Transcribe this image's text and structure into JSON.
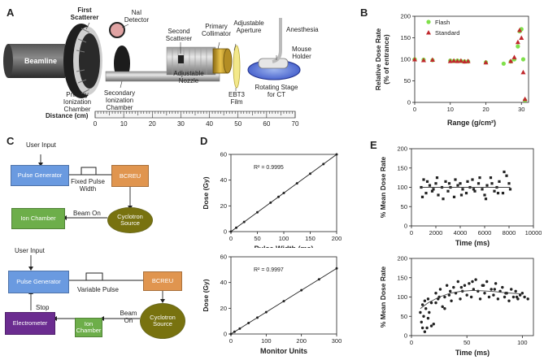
{
  "panels": {
    "a": "A",
    "b": "B",
    "c": "C",
    "d": "D",
    "e": "E"
  },
  "panel_a": {
    "labels": {
      "first_scatterer": "First Scatterer",
      "nai_detector": "NaI Detector",
      "beamline": "Beamline",
      "primary_ionization_chamber": "Primary Ionization Chamber",
      "secondary_ionization_chamber": "Secondary Ionization Chamber",
      "second_scatterer": "Second Scatterer",
      "primary_collimator": "Primary Collimator",
      "adjustable_aperture": "Adjustable Aperture",
      "adjustable_nozzle": "Adjustable Nozzle",
      "anesthesia": "Anesthesia",
      "mouse_holder": "Mouse Holder",
      "ebt3_film": "EBT3 Film",
      "rotating_stage": "Rotating Stage for CT"
    },
    "ruler": {
      "label": "Distance (cm)",
      "ticks": [
        0,
        10,
        20,
        30,
        40,
        50,
        60,
        70
      ]
    }
  },
  "panel_c": {
    "top": {
      "user_input": "User Input",
      "pulse_generator": "Pulse Generator",
      "pulse_label": "Fixed Pulse Width",
      "bcreu": "BCREU",
      "ion_chamber": "Ion Chamber",
      "beam_on": "Beam On",
      "cyclotron": "Cyclotron Source"
    },
    "bottom": {
      "user_input": "User Input",
      "pulse_generator": "Pulse Generator",
      "pulse_label": "Variable Pulse",
      "bcreu": "BCREU",
      "stop": "Stop",
      "beam_on": "Beam On",
      "electrometer": "Electrometer",
      "ion_chamber": "Ion Chamber",
      "cyclotron": "Cyclotron Source"
    },
    "colors": {
      "blue": "#5b8fd6",
      "orange": "#d98a45",
      "green": "#66a845",
      "olive": "#6e6a10",
      "purple": "#6a2c8e"
    }
  },
  "chart_data": [
    {
      "id": "B",
      "type": "scatter",
      "xlabel": "Range (g/cm²)",
      "ylabel": "Relative Dose Rate (% of entrance)",
      "xlim": [
        0,
        32
      ],
      "ylim": [
        0,
        200
      ],
      "xticks": [
        0,
        10,
        20,
        30
      ],
      "yticks": [
        0,
        50,
        100,
        150,
        200
      ],
      "legend_position": "top-left",
      "series": [
        {
          "name": "Flash",
          "marker": "circle",
          "color": "#7fe04a",
          "x": [
            0,
            2.5,
            5,
            10,
            11,
            12,
            13,
            14,
            15,
            20,
            25,
            27,
            28,
            29,
            29.5,
            30,
            30.5,
            31
          ],
          "y": [
            100,
            99,
            98,
            97,
            96,
            97,
            96,
            95,
            95,
            93,
            90,
            95,
            100,
            130,
            165,
            170,
            100,
            5
          ]
        },
        {
          "name": "Standard",
          "marker": "triangle",
          "color": "#c0282d",
          "x": [
            0,
            2.5,
            5,
            10,
            11,
            12,
            13,
            14,
            15,
            20,
            27,
            28,
            29,
            29.5,
            30,
            30.5,
            31
          ],
          "y": [
            100,
            98,
            99,
            96,
            97,
            96,
            97,
            95,
            96,
            93,
            96,
            105,
            140,
            168,
            150,
            70,
            8
          ]
        }
      ]
    },
    {
      "id": "D-top",
      "type": "line",
      "xlabel": "Pulse Width (ms)",
      "ylabel": "Dose (Gy)",
      "xlim": [
        0,
        200
      ],
      "ylim": [
        0,
        60
      ],
      "xticks": [
        0,
        50,
        100,
        150,
        200
      ],
      "yticks": [
        0,
        20,
        40,
        60
      ],
      "annotation": "R² = 0.9995",
      "x": [
        0,
        10,
        25,
        50,
        75,
        90,
        100,
        125,
        150,
        175,
        200
      ],
      "y": [
        0,
        3,
        7.5,
        15,
        22.5,
        27,
        30,
        37.5,
        45,
        52.5,
        60
      ]
    },
    {
      "id": "D-bottom",
      "type": "line",
      "xlabel": "Monitor Units",
      "ylabel": "Dose (Gy)",
      "xlim": [
        0,
        300
      ],
      "ylim": [
        0,
        60
      ],
      "xticks": [
        0,
        100,
        200,
        300
      ],
      "yticks": [
        0,
        20,
        40,
        60
      ],
      "annotation": "R² = 0.9997",
      "x": [
        0,
        10,
        25,
        50,
        75,
        100,
        150,
        200,
        250,
        300
      ],
      "y": [
        0,
        1.7,
        4.2,
        8.5,
        12.7,
        17,
        25.5,
        34,
        42.5,
        51
      ]
    },
    {
      "id": "E-top",
      "type": "scatter",
      "xlabel": "Time (ms)",
      "ylabel": "% Mean Dose Rate",
      "xlim": [
        0,
        10000
      ],
      "ylim": [
        0,
        200
      ],
      "xticks": [
        0,
        2000,
        4000,
        6000,
        8000,
        10000
      ],
      "yticks": [
        0,
        50,
        100,
        150,
        200
      ],
      "x": [
        800,
        1000,
        1200,
        1500,
        1800,
        2000,
        2200,
        2500,
        2800,
        3000,
        3200,
        3500,
        3800,
        4000,
        4200,
        4500,
        4800,
        5000,
        5200,
        5500,
        5800,
        6000,
        6200,
        6500,
        6800,
        7000,
        7200,
        7500,
        7800,
        8000,
        900,
        1300,
        1700,
        2100,
        2600,
        3100,
        3600,
        4100,
        4600,
        5100,
        5600,
        6100,
        6600,
        7100,
        7600,
        8100
      ],
      "y": [
        100,
        120,
        85,
        105,
        95,
        110,
        80,
        100,
        115,
        90,
        100,
        75,
        105,
        110,
        95,
        85,
        100,
        120,
        90,
        110,
        95,
        80,
        105,
        125,
        90,
        100,
        115,
        85,
        130,
        110,
        75,
        115,
        90,
        125,
        70,
        110,
        120,
        80,
        115,
        95,
        125,
        70,
        110,
        85,
        140,
        95
      ]
    },
    {
      "id": "E-bottom",
      "type": "scatter",
      "xlabel": "Time (ms)",
      "ylabel": "% Mean Dose Rate",
      "xlim": [
        0,
        110
      ],
      "ylim": [
        0,
        200
      ],
      "xticks": [
        0,
        50,
        100
      ],
      "yticks": [
        0,
        50,
        100,
        150,
        200
      ],
      "fit_x": [
        8,
        15,
        25,
        35,
        45,
        55,
        65,
        75,
        85,
        100
      ],
      "fit_y": [
        70,
        85,
        100,
        110,
        115,
        117,
        116,
        114,
        111,
        108
      ],
      "x": [
        8,
        9,
        10,
        11,
        12,
        13,
        14,
        15,
        16,
        18,
        20,
        22,
        24,
        26,
        28,
        30,
        32,
        34,
        36,
        38,
        40,
        42,
        44,
        46,
        48,
        50,
        52,
        54,
        56,
        58,
        60,
        62,
        64,
        66,
        68,
        70,
        72,
        74,
        76,
        78,
        80,
        82,
        84,
        86,
        88,
        90,
        92,
        94,
        96,
        98,
        100,
        102,
        105,
        10,
        12,
        15,
        18,
        22,
        25,
        30,
        35,
        45,
        55,
        65,
        75,
        85,
        95
      ],
      "y": [
        60,
        35,
        80,
        50,
        90,
        70,
        20,
        95,
        60,
        85,
        30,
        110,
        95,
        120,
        75,
        100,
        130,
        105,
        90,
        125,
        110,
        140,
        95,
        115,
        130,
        105,
        135,
        100,
        120,
        145,
        115,
        95,
        130,
        110,
        140,
        100,
        120,
        105,
        135,
        95,
        115,
        125,
        100,
        110,
        90,
        120,
        100,
        115,
        95,
        105,
        110,
        100,
        95,
        20,
        10,
        45,
        25,
        85,
        100,
        70,
        115,
        125,
        140,
        130,
        120,
        110,
        100
      ]
    }
  ]
}
